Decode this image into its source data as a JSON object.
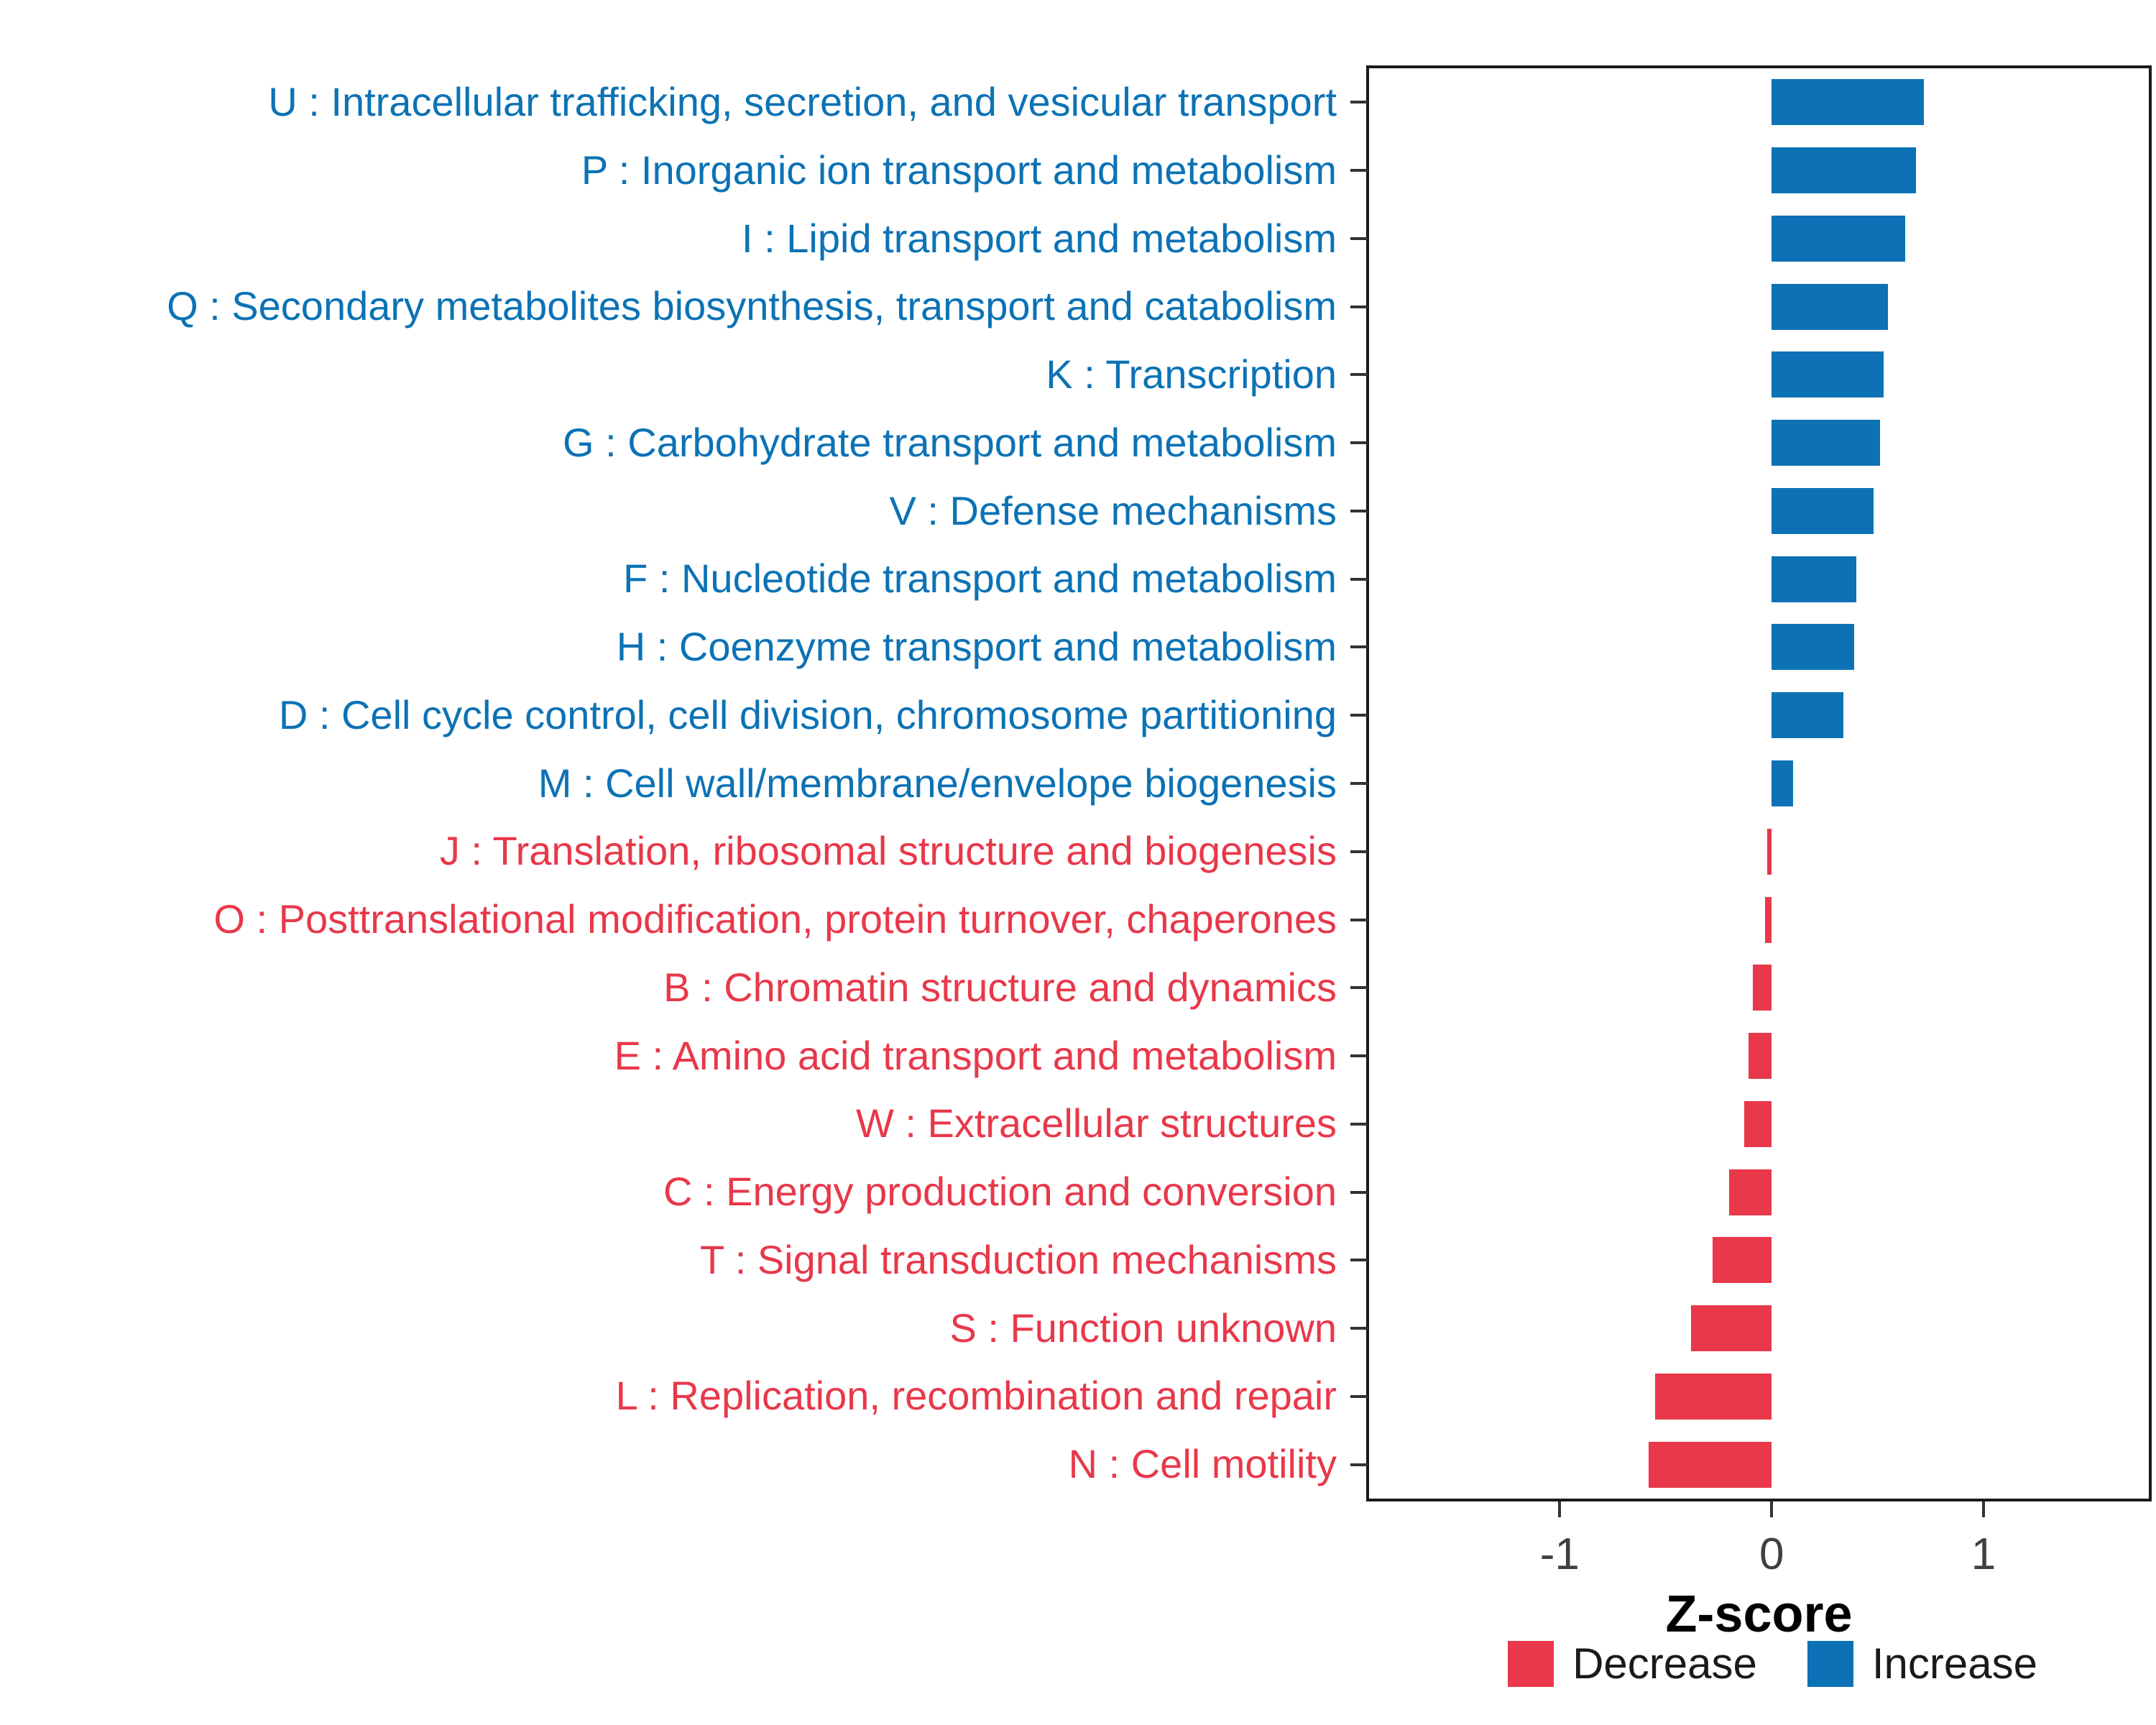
{
  "chart_data": {
    "type": "bar",
    "orientation": "horizontal",
    "title": "",
    "xlabel": "Z-score",
    "ylabel": "",
    "xlim": [
      -1.9,
      1.78
    ],
    "x_ticks": [
      -1,
      0,
      1
    ],
    "grid": false,
    "legend_position": "bottom-right",
    "colors": {
      "Decrease": "#E8384A",
      "Increase": "#0C72B5"
    },
    "legend": [
      {
        "key": "Decrease",
        "label": "Decrease"
      },
      {
        "key": "Increase",
        "label": "Increase"
      }
    ],
    "bars": [
      {
        "code": "U",
        "label": "U : Intracellular trafficking, secretion, and vesicular transport",
        "value": 0.72,
        "group": "Increase"
      },
      {
        "code": "P",
        "label": "P : Inorganic ion transport and metabolism",
        "value": 0.68,
        "group": "Increase"
      },
      {
        "code": "I",
        "label": "I : Lipid transport and metabolism",
        "value": 0.63,
        "group": "Increase"
      },
      {
        "code": "Q",
        "label": "Q : Secondary metabolites biosynthesis, transport and catabolism",
        "value": 0.55,
        "group": "Increase"
      },
      {
        "code": "K",
        "label": "K : Transcription",
        "value": 0.53,
        "group": "Increase"
      },
      {
        "code": "G",
        "label": "G : Carbohydrate transport and metabolism",
        "value": 0.51,
        "group": "Increase"
      },
      {
        "code": "V",
        "label": "V : Defense mechanisms",
        "value": 0.48,
        "group": "Increase"
      },
      {
        "code": "F",
        "label": "F : Nucleotide transport and metabolism",
        "value": 0.4,
        "group": "Increase"
      },
      {
        "code": "H",
        "label": "H : Coenzyme transport and metabolism",
        "value": 0.39,
        "group": "Increase"
      },
      {
        "code": "D",
        "label": "D : Cell cycle control, cell division, chromosome partitioning",
        "value": 0.34,
        "group": "Increase"
      },
      {
        "code": "M",
        "label": "M : Cell wall/membrane/envelope biogenesis",
        "value": 0.1,
        "group": "Increase"
      },
      {
        "code": "J",
        "label": "J : Translation, ribosomal structure and biogenesis",
        "value": -0.02,
        "group": "Decrease"
      },
      {
        "code": "O",
        "label": "O : Posttranslational modification, protein turnover, chaperones",
        "value": -0.03,
        "group": "Decrease"
      },
      {
        "code": "B",
        "label": "B : Chromatin structure and dynamics",
        "value": -0.09,
        "group": "Decrease"
      },
      {
        "code": "E",
        "label": "E : Amino acid transport and metabolism",
        "value": -0.11,
        "group": "Decrease"
      },
      {
        "code": "W",
        "label": "W : Extracellular structures",
        "value": -0.13,
        "group": "Decrease"
      },
      {
        "code": "C",
        "label": "C : Energy production and conversion",
        "value": -0.2,
        "group": "Decrease"
      },
      {
        "code": "T",
        "label": "T : Signal transduction mechanisms",
        "value": -0.28,
        "group": "Decrease"
      },
      {
        "code": "S",
        "label": "S : Function unknown",
        "value": -0.38,
        "group": "Decrease"
      },
      {
        "code": "L",
        "label": "L : Replication, recombination and repair",
        "value": -0.55,
        "group": "Decrease"
      },
      {
        "code": "N",
        "label": "N : Cell motility",
        "value": -0.58,
        "group": "Decrease"
      }
    ]
  }
}
